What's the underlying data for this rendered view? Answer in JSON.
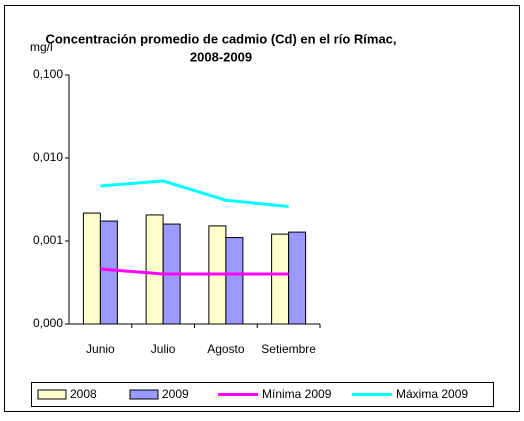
{
  "chart_data": {
    "type": "bar",
    "title": [
      "Concentración promedio de cadmio (Cd) en  el río Rímac,",
      "2008-2009"
    ],
    "y_label": "mg/l",
    "log_scale": true,
    "categories": [
      "Junio",
      "Julio",
      "Agosto",
      "Setiembre"
    ],
    "series": [
      {
        "name": "2008",
        "kind": "bar",
        "color": "#ffffcc",
        "values": [
          0.00217,
          0.00206,
          0.00152,
          0.00121
        ]
      },
      {
        "name": "2009",
        "kind": "bar",
        "color": "#9999ff",
        "values": [
          0.00174,
          0.0016,
          0.0011,
          0.00128
        ]
      },
      {
        "name": "Mínima 2009",
        "kind": "line",
        "color": "#ff00ff",
        "values": [
          0.00046,
          0.0004,
          0.0004,
          0.0004
        ]
      },
      {
        "name": "Máxima 2009",
        "kind": "line",
        "color": "#00ffff",
        "values": [
          0.0046,
          0.0053,
          0.0031,
          0.0026
        ]
      }
    ],
    "ylim": [
      0.0001,
      0.1
    ],
    "yticks": [
      {
        "value": 0.0001,
        "label": "0,000"
      },
      {
        "value": 0.001,
        "label": "0,001"
      },
      {
        "value": 0.01,
        "label": "0,010"
      },
      {
        "value": 0.1,
        "label": "0,100"
      }
    ]
  }
}
